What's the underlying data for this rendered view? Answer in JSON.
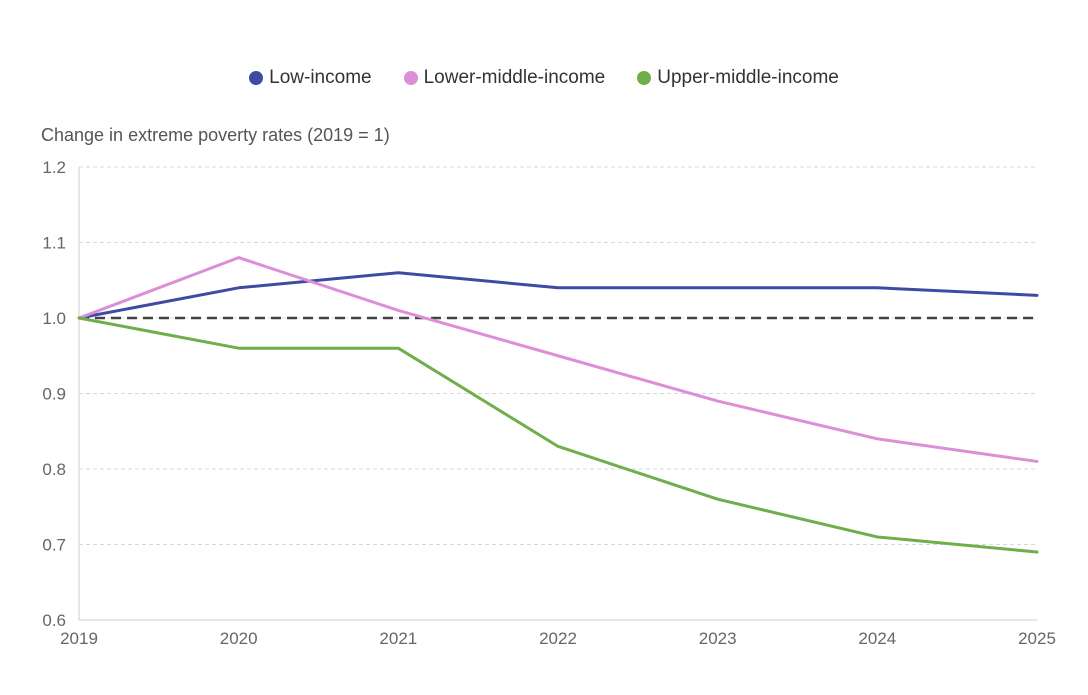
{
  "chart_data": {
    "type": "line",
    "ylabel": "Change in extreme poverty rates (2019 = 1)",
    "xlabel": "",
    "x": [
      "2019",
      "2020",
      "2021",
      "2022",
      "2023",
      "2024",
      "2025"
    ],
    "ylim": [
      0.6,
      1.2
    ],
    "yticks": [
      "0.6",
      "0.7",
      "0.8",
      "0.9",
      "1.0",
      "1.1",
      "1.2"
    ],
    "grid": true,
    "legend_position": "top-center",
    "reference_line": {
      "y": 1.0,
      "style": "dashed",
      "color": "#444444"
    },
    "series": [
      {
        "name": "Low-income",
        "color": "#3d4ba3",
        "values": [
          1.0,
          1.04,
          1.06,
          1.04,
          1.04,
          1.04,
          1.03
        ]
      },
      {
        "name": "Lower-middle-income",
        "color": "#dc8fd6",
        "values": [
          1.0,
          1.08,
          1.01,
          0.95,
          0.89,
          0.84,
          0.81
        ]
      },
      {
        "name": "Upper-middle-income",
        "color": "#6fae4a",
        "values": [
          1.0,
          0.96,
          0.96,
          0.83,
          0.76,
          0.71,
          0.69
        ]
      }
    ]
  }
}
